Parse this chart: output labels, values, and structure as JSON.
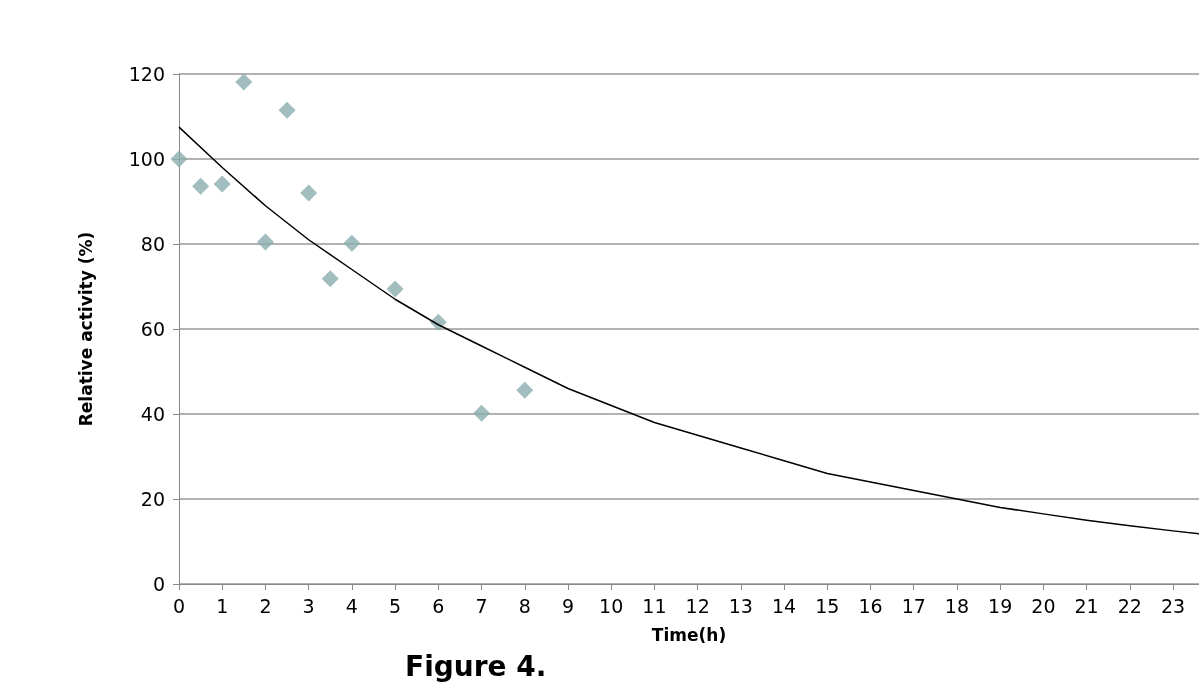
{
  "chart_data": {
    "type": "scatter",
    "xlabel": "Time(h)",
    "ylabel": "Relative activity (%)",
    "annotations": [
      "Figure 4."
    ],
    "xlim": [
      0,
      23.6
    ],
    "xticks": [
      0,
      1,
      2,
      3,
      4,
      5,
      6,
      7,
      8,
      9,
      10,
      11,
      12,
      13,
      14,
      15,
      16,
      17,
      18,
      19,
      20,
      21,
      22,
      23
    ],
    "ylim": [
      0,
      120
    ],
    "yticks": [
      0,
      20,
      40,
      60,
      80,
      100,
      120
    ],
    "grid": "y",
    "series": [
      {
        "color": "#8aacac",
        "marker": "diamond",
        "x": [
          0,
          0.5,
          1,
          1.5,
          2,
          2.5,
          3,
          3.5,
          4,
          5,
          6,
          7,
          8
        ],
        "values": [
          100,
          93.6,
          94.1,
          118.1,
          80.5,
          111.5,
          92,
          71.8,
          80.2,
          69.4,
          61.6,
          40.2,
          45.6
        ]
      },
      {
        "type": "line",
        "color": "#000000",
        "marker": "none",
        "line_style": "solid",
        "x": [
          0,
          1,
          2,
          3,
          4,
          5,
          6,
          7,
          8,
          9,
          10,
          11,
          12,
          13,
          14,
          15,
          16,
          17,
          18,
          19,
          20,
          21,
          22,
          23,
          23.6
        ],
        "values": [
          107.5,
          98,
          89,
          81,
          74,
          67,
          61,
          56,
          51,
          46,
          42,
          38,
          35,
          32,
          29,
          26,
          24,
          22,
          20,
          18,
          16.5,
          15,
          13.7,
          12.5,
          11.8
        ]
      }
    ]
  }
}
